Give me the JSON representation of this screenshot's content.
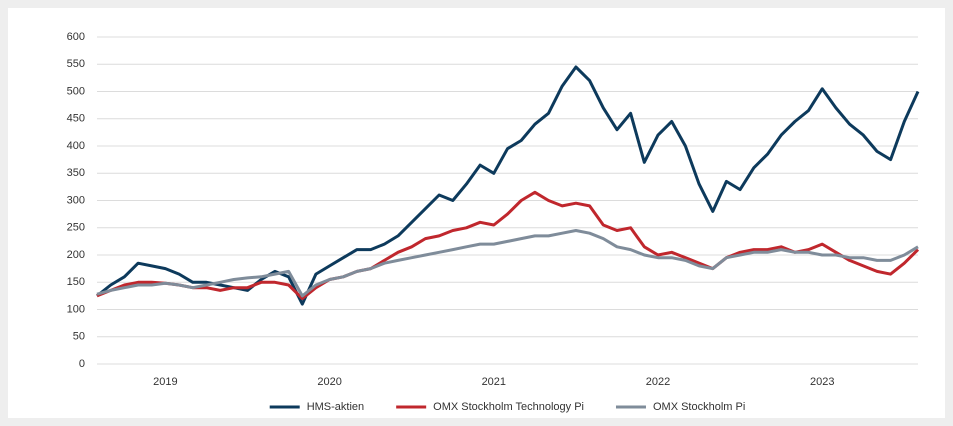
{
  "chart_data": {
    "type": "line",
    "categories": [
      null,
      null,
      null,
      null,
      null,
      "2019",
      null,
      null,
      null,
      null,
      null,
      null,
      null,
      null,
      null,
      null,
      null,
      "2020",
      null,
      null,
      null,
      null,
      null,
      null,
      null,
      null,
      null,
      null,
      null,
      "2021",
      null,
      null,
      null,
      null,
      null,
      null,
      null,
      null,
      null,
      null,
      null,
      "2022",
      null,
      null,
      null,
      null,
      null,
      null,
      null,
      null,
      null,
      null,
      null,
      "2023",
      null,
      null,
      null,
      null,
      null,
      null,
      null
    ],
    "series": [
      {
        "name": "HMS-aktien",
        "color": "#0d3a5c",
        "values": [
          125,
          145,
          160,
          185,
          180,
          175,
          165,
          150,
          150,
          145,
          140,
          135,
          155,
          170,
          160,
          110,
          165,
          180,
          195,
          210,
          210,
          220,
          235,
          260,
          285,
          310,
          300,
          330,
          365,
          350,
          395,
          410,
          440,
          460,
          510,
          545,
          520,
          470,
          430,
          460,
          370,
          420,
          445,
          400,
          330,
          280,
          335,
          320,
          360,
          385,
          420,
          445,
          465,
          505,
          470,
          440,
          420,
          390,
          375,
          445,
          500
        ]
      },
      {
        "name": "OMX Stockholm Technology Pi",
        "color": "#c0272d",
        "values": [
          125,
          135,
          145,
          150,
          150,
          148,
          145,
          140,
          140,
          135,
          140,
          140,
          150,
          150,
          145,
          120,
          140,
          155,
          160,
          170,
          175,
          190,
          205,
          215,
          230,
          235,
          245,
          250,
          260,
          255,
          275,
          300,
          315,
          300,
          290,
          295,
          290,
          255,
          245,
          250,
          215,
          200,
          205,
          195,
          185,
          175,
          195,
          205,
          210,
          210,
          215,
          205,
          210,
          220,
          205,
          190,
          180,
          170,
          165,
          185,
          210
        ]
      },
      {
        "name": "OMX Stockholm Pi",
        "color": "#7f8c9a",
        "values": [
          128,
          135,
          140,
          145,
          145,
          148,
          145,
          140,
          145,
          150,
          155,
          158,
          160,
          165,
          170,
          125,
          145,
          155,
          160,
          170,
          175,
          185,
          190,
          195,
          200,
          205,
          210,
          215,
          220,
          220,
          225,
          230,
          235,
          235,
          240,
          245,
          240,
          230,
          215,
          210,
          200,
          195,
          195,
          190,
          180,
          175,
          195,
          200,
          205,
          205,
          210,
          205,
          205,
          200,
          200,
          195,
          195,
          190,
          190,
          200,
          215
        ]
      }
    ],
    "ylim": [
      0,
      600
    ],
    "yticks": [
      0,
      50,
      100,
      150,
      200,
      250,
      300,
      350,
      400,
      450,
      500,
      550,
      600
    ],
    "grid": true,
    "legend": "bottom"
  }
}
